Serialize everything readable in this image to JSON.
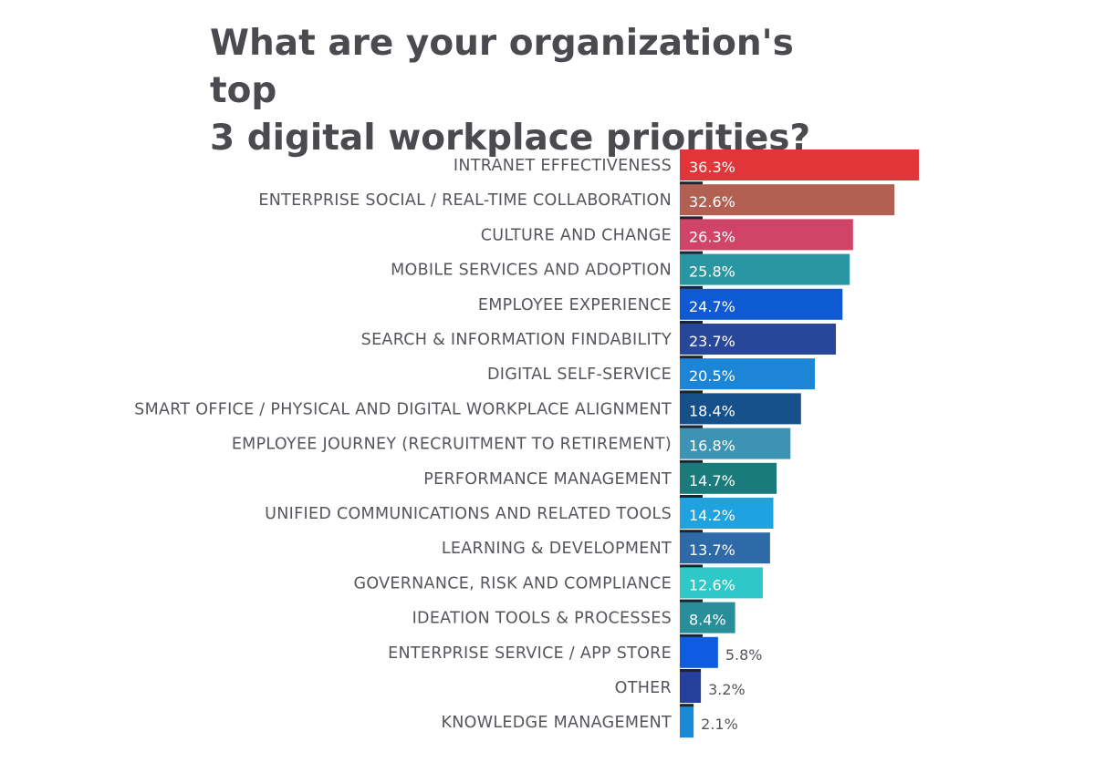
{
  "chart_data": {
    "type": "bar",
    "orientation": "horizontal",
    "title": "What are your organization's top\n3 digital workplace priorities?",
    "categories": [
      "INTRANET EFFECTIVENESS",
      "ENTERPRISE SOCIAL / REAL-TIME COLLABORATION",
      "CULTURE AND CHANGE",
      "MOBILE SERVICES AND ADOPTION",
      "EMPLOYEE EXPERIENCE",
      "SEARCH & INFORMATION FINDABILITY",
      "DIGITAL SELF-SERVICE",
      "SMART OFFICE / PHYSICAL AND DIGITAL WORKPLACE ALIGNMENT",
      "EMPLOYEE JOURNEY (RECRUITMENT TO RETIREMENT)",
      "PERFORMANCE MANAGEMENT",
      "UNIFIED COMMUNICATIONS AND RELATED TOOLS",
      "LEARNING & DEVELOPMENT",
      "GOVERNANCE, RISK AND COMPLIANCE",
      "IDEATION TOOLS & PROCESSES",
      "ENTERPRISE SERVICE / APP STORE",
      "OTHER",
      "KNOWLEDGE MANAGEMENT"
    ],
    "values": [
      36.3,
      32.6,
      26.3,
      25.8,
      24.7,
      23.7,
      20.5,
      18.4,
      16.8,
      14.7,
      14.2,
      13.7,
      12.6,
      8.4,
      5.8,
      3.2,
      2.1
    ],
    "value_labels": [
      "36.3%",
      "32.6%",
      "26.3%",
      "25.8%",
      "24.7%",
      "23.7%",
      "20.5%",
      "18.4%",
      "16.8%",
      "14.7%",
      "14.2%",
      "13.7%",
      "12.6%",
      "8.4%",
      "5.8%",
      "3.2%",
      "2.1%"
    ],
    "colors": [
      "#e2353a",
      "#b35f52",
      "#d04468",
      "#2997a3",
      "#0e5ad3",
      "#29479a",
      "#1d85d6",
      "#15508b",
      "#3d93b3",
      "#1a7a7c",
      "#1ea2e0",
      "#2e6aa8",
      "#2ec8c9",
      "#2a8e99",
      "#0f5ce0",
      "#24409a",
      "#1b8ad6"
    ],
    "xlim": [
      0,
      36.3
    ],
    "grid": false,
    "legend": "none",
    "xlabel": "",
    "ylabel": ""
  }
}
